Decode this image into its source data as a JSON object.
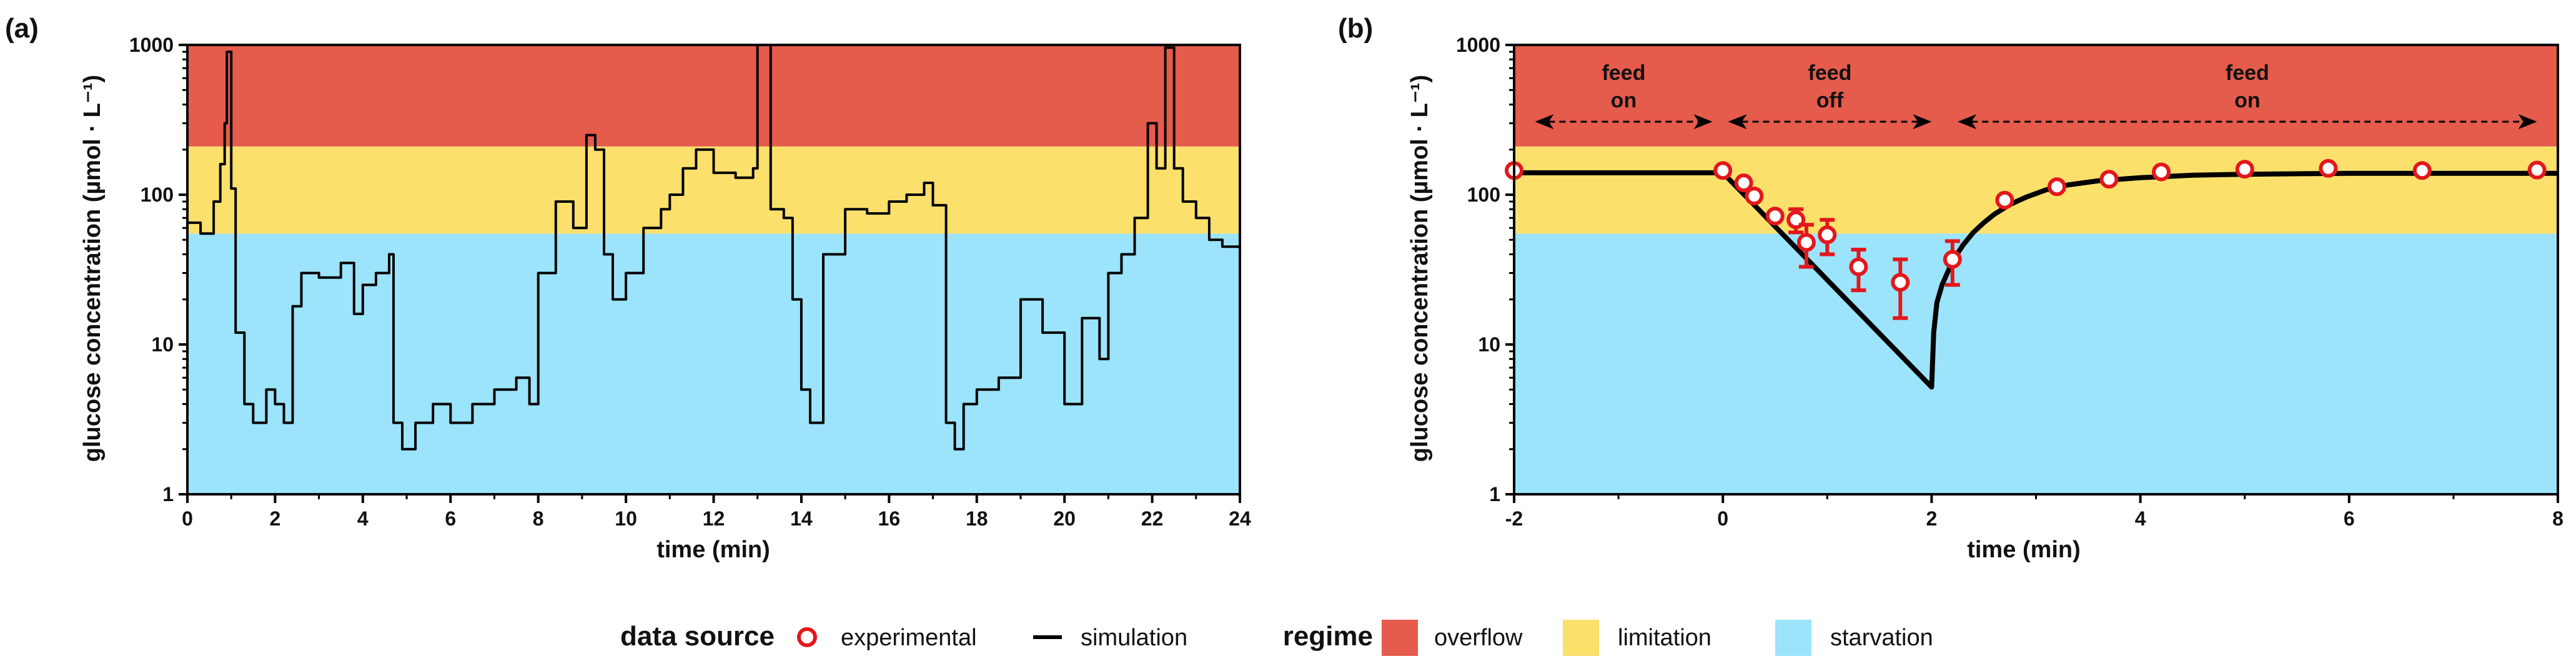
{
  "colors": {
    "overflow": "#e55b4c",
    "limitation": "#fbe06c",
    "starvation": "#9be4fb",
    "experimental": "#e3171b",
    "simulation": "#000000"
  },
  "chart_data": [
    {
      "type": "line",
      "panel_label": "(a)",
      "xlabel": "time (min)",
      "ylabel": "glucose concentration (µmol · L⁻¹)",
      "xlim": [
        0,
        24
      ],
      "ylim": [
        1,
        1000
      ],
      "yscale": "log",
      "xticks": [
        0,
        2,
        4,
        6,
        8,
        10,
        12,
        14,
        16,
        18,
        20,
        22,
        24
      ],
      "yticks": [
        1,
        10,
        100,
        1000
      ],
      "regimes": [
        {
          "name": "starvation",
          "from": 1,
          "to": 55
        },
        {
          "name": "limitation",
          "from": 55,
          "to": 210
        },
        {
          "name": "overflow",
          "from": 210,
          "to": 1000
        }
      ],
      "series": [
        {
          "name": "simulation",
          "x": [
            0,
            0.3,
            0.6,
            0.75,
            0.85,
            0.9,
            1.0,
            1.1,
            1.3,
            1.5,
            1.8,
            2.0,
            2.2,
            2.4,
            2.6,
            3.0,
            3.5,
            3.8,
            4.0,
            4.3,
            4.6,
            4.7,
            4.9,
            5.2,
            5.6,
            6.0,
            6.5,
            7.0,
            7.5,
            7.8,
            8.0,
            8.4,
            8.8,
            9.1,
            9.3,
            9.5,
            9.7,
            10.0,
            10.4,
            10.8,
            11.0,
            11.3,
            11.6,
            12.0,
            12.5,
            12.9,
            13.0,
            13.3,
            13.6,
            13.8,
            14.0,
            14.2,
            14.5,
            15.0,
            15.5,
            16.0,
            16.4,
            16.8,
            17.0,
            17.3,
            17.5,
            17.7,
            18.0,
            18.5,
            19.0,
            19.5,
            20.0,
            20.4,
            20.8,
            21.0,
            21.3,
            21.6,
            21.9,
            22.1,
            22.3,
            22.5,
            22.7,
            23.0,
            23.3,
            23.6,
            24.0
          ],
          "y": [
            65,
            55,
            90,
            160,
            300,
            900,
            110,
            12,
            4,
            3,
            5,
            4,
            3,
            18,
            30,
            28,
            35,
            16,
            25,
            30,
            40,
            3,
            2,
            3,
            4,
            3,
            4,
            5,
            6,
            4,
            30,
            90,
            60,
            250,
            200,
            40,
            20,
            30,
            60,
            80,
            100,
            150,
            200,
            140,
            130,
            150,
            1000,
            80,
            70,
            20,
            5,
            3,
            40,
            80,
            75,
            90,
            100,
            120,
            85,
            3,
            2,
            4,
            5,
            6,
            20,
            12,
            4,
            15,
            8,
            30,
            40,
            70,
            300,
            150,
            960,
            150,
            90,
            70,
            50,
            45,
            90
          ]
        }
      ]
    },
    {
      "type": "line",
      "panel_label": "(b)",
      "xlabel": "time (min)",
      "ylabel": "glucose concentration (µmol · L⁻¹)",
      "xlim": [
        -2,
        8
      ],
      "ylim": [
        1,
        1000
      ],
      "yscale": "log",
      "xticks": [
        -2,
        0,
        2,
        4,
        6,
        8
      ],
      "yticks": [
        1,
        10,
        100,
        1000
      ],
      "regimes": [
        {
          "name": "starvation",
          "from": 1,
          "to": 55
        },
        {
          "name": "limitation",
          "from": 55,
          "to": 210
        },
        {
          "name": "overflow",
          "from": 210,
          "to": 1000
        }
      ],
      "annotations": [
        {
          "lines": [
            "feed",
            "on"
          ],
          "x_from": -1.8,
          "x_to": -0.1
        },
        {
          "lines": [
            "feed",
            "off"
          ],
          "x_from": 0.05,
          "x_to": 2.0
        },
        {
          "lines": [
            "feed",
            "on"
          ],
          "x_from": 2.25,
          "x_to": 7.8
        }
      ],
      "series": [
        {
          "name": "simulation",
          "x": [
            -2,
            0,
            2.0,
            2.02,
            2.05,
            2.1,
            2.15,
            2.2,
            2.3,
            2.4,
            2.5,
            2.6,
            2.75,
            2.9,
            3.1,
            3.3,
            3.6,
            4.0,
            4.5,
            5.0,
            6.0,
            7.0,
            8.0
          ],
          "y": [
            140,
            140,
            5.2,
            12,
            19,
            25,
            30,
            36,
            46,
            56,
            65,
            74,
            86,
            96,
            108,
            116,
            124,
            130,
            135,
            137,
            139,
            139,
            139
          ]
        },
        {
          "name": "experimental",
          "x": [
            -2.0,
            0.0,
            0.2,
            0.3,
            0.5,
            0.7,
            0.8,
            1.0,
            1.3,
            1.7,
            2.2,
            2.7,
            3.2,
            3.7,
            4.2,
            5.0,
            5.8,
            6.7,
            7.8
          ],
          "y": [
            145,
            145,
            120,
            98,
            72,
            68,
            48,
            54,
            33,
            26,
            37,
            92,
            113,
            127,
            142,
            148,
            150,
            145,
            146
          ],
          "err": [
            0,
            0,
            0,
            0,
            0,
            12,
            15,
            14,
            10,
            11,
            12,
            0,
            0,
            0,
            0,
            0,
            0,
            0,
            0
          ]
        }
      ]
    }
  ],
  "legend": {
    "data_source_title": "data source",
    "experimental_label": "experimental",
    "simulation_label": "simulation",
    "regime_title": "regime",
    "overflow_label": "overflow",
    "limitation_label": "limitation",
    "starvation_label": "starvation"
  }
}
